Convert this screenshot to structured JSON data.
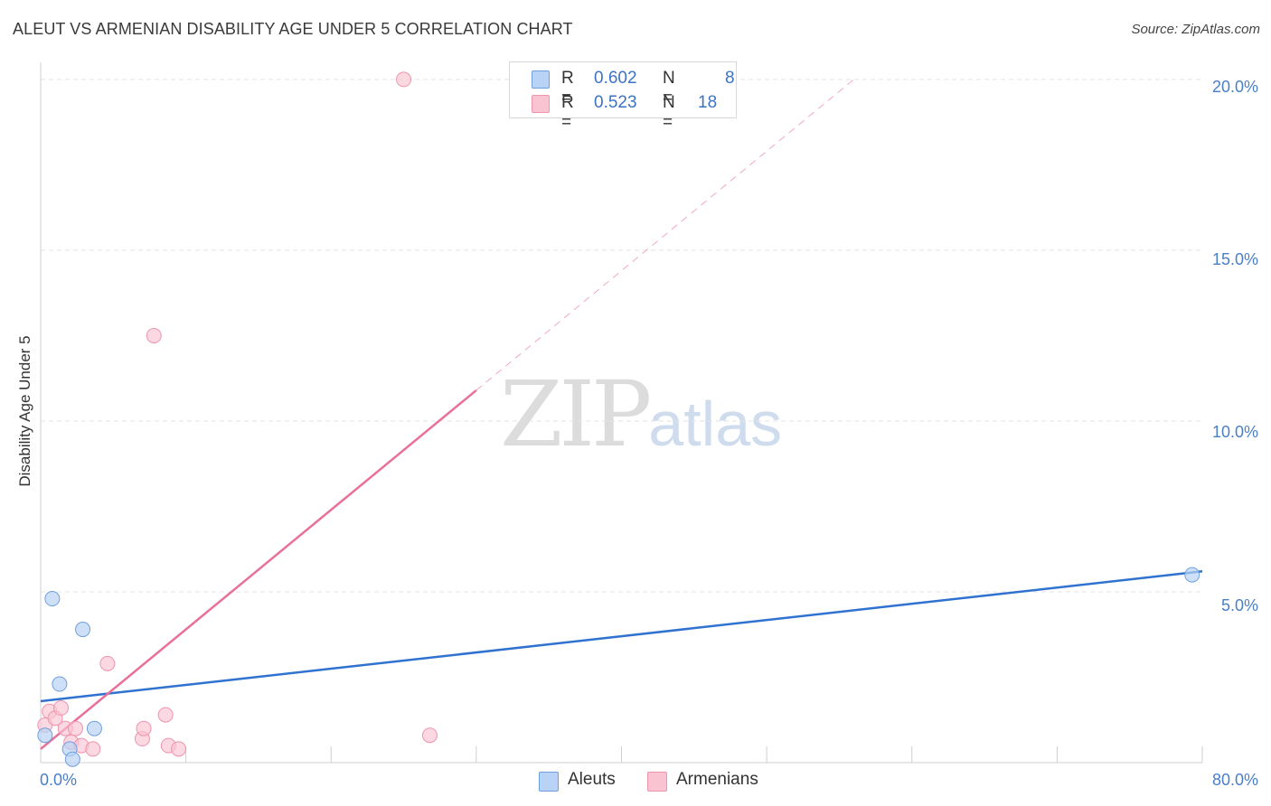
{
  "title": "ALEUT VS ARMENIAN DISABILITY AGE UNDER 5 CORRELATION CHART",
  "source": "Source: ZipAtlas.com",
  "watermark": {
    "zip": "ZIP",
    "atlas": "atlas"
  },
  "legend": [
    {
      "r_label": "R =",
      "r_value": "0.602",
      "n_label": "N =",
      "n_value": "8"
    },
    {
      "r_label": "R =",
      "r_value": "0.523",
      "n_label": "N =",
      "n_value": "18"
    }
  ],
  "colors": {
    "aleuts_fill": "#b8d3f5",
    "aleuts_stroke": "#6f9fdc",
    "aleuts_line": "#2f72d0",
    "armenians_fill": "#fac3d2",
    "armenians_stroke": "#ee94ad",
    "armenians_line": "#e8709a",
    "grid": "#e3e3e3",
    "tick_label": "#4a7fc8"
  },
  "chart_data": {
    "type": "scatter",
    "title": "ALEUT VS ARMENIAN DISABILITY AGE UNDER 5 CORRELATION CHART",
    "xlabel": "",
    "ylabel": "Disability Age Under 5",
    "xlim": [
      0,
      80
    ],
    "ylim": [
      0,
      20.5
    ],
    "x_tick_labels": [
      "0.0%",
      "80.0%"
    ],
    "y_ticks": [
      5,
      10,
      15,
      20
    ],
    "y_tick_labels": [
      "5.0%",
      "10.0%",
      "15.0%",
      "20.0%"
    ],
    "grid": true,
    "series": [
      {
        "name": "Aleuts",
        "points": [
          [
            0.3,
            0.8
          ],
          [
            0.8,
            4.8
          ],
          [
            1.3,
            2.3
          ],
          [
            2.0,
            0.4
          ],
          [
            2.2,
            0.1
          ],
          [
            2.9,
            3.9
          ],
          [
            3.7,
            1.0
          ],
          [
            79.3,
            5.5
          ]
        ],
        "trend": {
          "x0": 0,
          "y0": 1.8,
          "x1": 80,
          "y1": 5.6
        }
      },
      {
        "name": "Armenians",
        "points": [
          [
            0.3,
            1.1
          ],
          [
            0.6,
            1.5
          ],
          [
            1.0,
            1.3
          ],
          [
            1.4,
            1.6
          ],
          [
            1.7,
            1.0
          ],
          [
            2.1,
            0.6
          ],
          [
            2.4,
            1.0
          ],
          [
            2.8,
            0.5
          ],
          [
            3.6,
            0.4
          ],
          [
            4.6,
            2.9
          ],
          [
            7.0,
            0.7
          ],
          [
            7.1,
            1.0
          ],
          [
            7.8,
            12.5
          ],
          [
            8.6,
            1.4
          ],
          [
            8.8,
            0.5
          ],
          [
            9.5,
            0.4
          ],
          [
            25.0,
            20.0
          ],
          [
            26.8,
            0.8
          ]
        ],
        "trend": {
          "x0": 0,
          "y0": 0.4,
          "x1": 30,
          "y1": 10.9,
          "dash_to_x": 56,
          "dash_to_y": 20.0
        }
      }
    ]
  }
}
